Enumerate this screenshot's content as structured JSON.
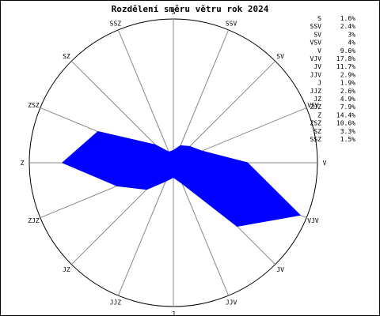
{
  "chart_data": {
    "type": "radar",
    "title": "Rozdělení směru větru rok 2024",
    "categories": [
      "S",
      "SSV",
      "SV",
      "VSV",
      "V",
      "VJV",
      "JV",
      "JJV",
      "J",
      "JJZ",
      "JZ",
      "ZJZ",
      "Z",
      "ZSZ",
      "SZ",
      "SSZ"
    ],
    "values": [
      1.6,
      2.4,
      3,
      4,
      9.6,
      17.8,
      11.7,
      2.9,
      1.9,
      2.6,
      4.9,
      7.9,
      14.4,
      10.6,
      3.3,
      1.5
    ],
    "value_labels": [
      "1.6%",
      "2.4%",
      "3%",
      "4%",
      "9.6%",
      "17.8%",
      "11.7%",
      "2.9%",
      "1.9%",
      "2.6%",
      "4.9%",
      "7.9%",
      "14.4%",
      "10.6%",
      "3.3%",
      "1.5%"
    ],
    "rmax": 18.7,
    "grid": true,
    "legend_position": "top-right",
    "fill_color": "#0000ff",
    "axis_color": "#888888",
    "circle_color": "#000000",
    "text_color": "#000000"
  }
}
